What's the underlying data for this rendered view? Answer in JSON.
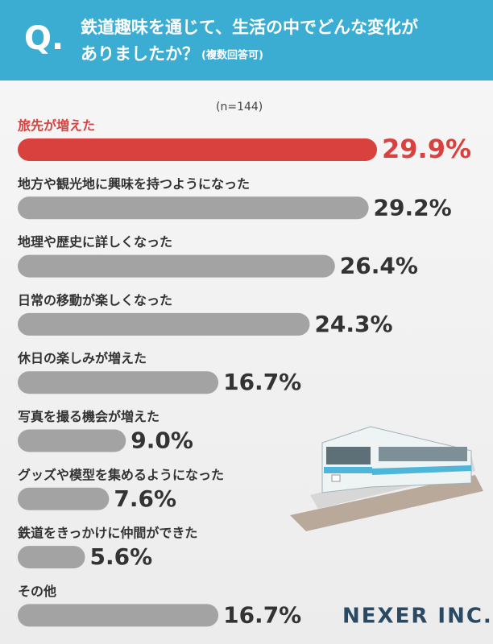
{
  "header": {
    "q_mark": "Q.",
    "question_line1": "鉄道趣味を通じて、生活の中でどんな変化が",
    "question_line2": "ありましたか？",
    "note": "(複数回答可)"
  },
  "chart_data": {
    "type": "bar",
    "orientation": "horizontal",
    "annotation": "(n=144)",
    "categories": [
      "旅先が増えた",
      "地方や観光地に興味を持つようになった",
      "地理や歴史に詳しくなった",
      "日常の移動が楽しくなった",
      "休日の楽しみが増えた",
      "写真を撮る機会が増えた",
      "グッズや模型を集めるようになった",
      "鉄道をきっかけに仲間ができた",
      "その他"
    ],
    "values": [
      29.9,
      29.2,
      26.4,
      24.3,
      16.7,
      9.0,
      7.6,
      5.6,
      16.7
    ],
    "value_labels": [
      "29.9%",
      "29.2%",
      "26.4%",
      "24.3%",
      "16.7%",
      "9.0%",
      "7.6%",
      "5.6%",
      "16.7%"
    ],
    "colors": [
      "#d9413f",
      "#a3a3a3",
      "#a3a3a3",
      "#a3a3a3",
      "#a3a3a3",
      "#a3a3a3",
      "#a3a3a3",
      "#a3a3a3",
      "#a3a3a3"
    ]
  },
  "footer": {
    "logo": "NEXER INC."
  }
}
